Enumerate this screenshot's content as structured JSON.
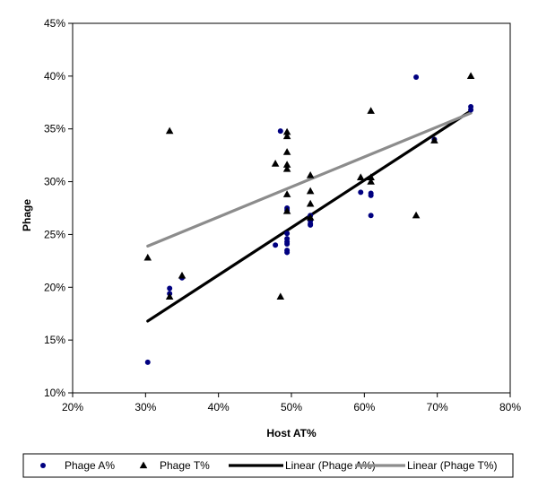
{
  "chart_data": {
    "type": "scatter",
    "xlabel": "Host AT%",
    "ylabel": "Phage",
    "xlim": [
      20,
      80
    ],
    "ylim": [
      10,
      45
    ],
    "x_ticks": [
      20,
      30,
      40,
      50,
      60,
      70,
      80
    ],
    "y_ticks": [
      10,
      15,
      20,
      25,
      30,
      35,
      40,
      45
    ],
    "x_tick_labels": [
      "20%",
      "30%",
      "40%",
      "50%",
      "60%",
      "70%",
      "80%"
    ],
    "y_tick_labels": [
      "10%",
      "15%",
      "20%",
      "25%",
      "30%",
      "35%",
      "40%",
      "45%"
    ],
    "grid": false,
    "legend_position": "bottom",
    "series": [
      {
        "name": "Phage A%",
        "marker": "circle",
        "color": "#000080",
        "points": [
          [
            30.3,
            12.9
          ],
          [
            33.3,
            19.9
          ],
          [
            33.3,
            19.4
          ],
          [
            35.0,
            20.9
          ],
          [
            47.8,
            24.0
          ],
          [
            48.5,
            34.8
          ],
          [
            49.4,
            27.5
          ],
          [
            49.4,
            27.3
          ],
          [
            49.4,
            25.1
          ],
          [
            49.4,
            24.6
          ],
          [
            49.4,
            24.3
          ],
          [
            49.4,
            24.1
          ],
          [
            49.4,
            23.5
          ],
          [
            49.4,
            23.3
          ],
          [
            52.6,
            26.8
          ],
          [
            52.6,
            26.3
          ],
          [
            52.6,
            26.0
          ],
          [
            52.6,
            25.9
          ],
          [
            59.5,
            29.0
          ],
          [
            60.9,
            28.9
          ],
          [
            60.9,
            28.7
          ],
          [
            60.9,
            26.8
          ],
          [
            67.1,
            39.9
          ],
          [
            69.6,
            34.0
          ],
          [
            74.6,
            37.1
          ],
          [
            74.6,
            36.8
          ]
        ]
      },
      {
        "name": "Phage T%",
        "marker": "triangle",
        "color": "#000000",
        "points": [
          [
            30.3,
            22.8
          ],
          [
            33.3,
            34.8
          ],
          [
            33.3,
            19.1
          ],
          [
            35.0,
            21.1
          ],
          [
            47.8,
            31.7
          ],
          [
            48.5,
            19.1
          ],
          [
            49.4,
            34.7
          ],
          [
            49.4,
            34.3
          ],
          [
            49.4,
            32.8
          ],
          [
            49.4,
            31.6
          ],
          [
            49.4,
            31.2
          ],
          [
            49.4,
            28.8
          ],
          [
            49.4,
            27.2
          ],
          [
            52.6,
            30.6
          ],
          [
            52.6,
            29.1
          ],
          [
            52.6,
            27.9
          ],
          [
            52.6,
            26.6
          ],
          [
            59.5,
            30.4
          ],
          [
            60.9,
            36.7
          ],
          [
            60.9,
            30.4
          ],
          [
            60.9,
            30.0
          ],
          [
            67.1,
            26.8
          ],
          [
            69.6,
            33.9
          ],
          [
            74.6,
            40.0
          ]
        ]
      },
      {
        "name": "Linear (Phage A%)",
        "type": "line",
        "color": "#000000",
        "endpoints": [
          [
            30.3,
            16.8
          ],
          [
            74.6,
            36.7
          ]
        ]
      },
      {
        "name": "Linear (Phage T%)",
        "type": "line",
        "color": "#8c8c8c",
        "endpoints": [
          [
            30.3,
            23.9
          ],
          [
            74.6,
            36.5
          ]
        ]
      }
    ]
  }
}
